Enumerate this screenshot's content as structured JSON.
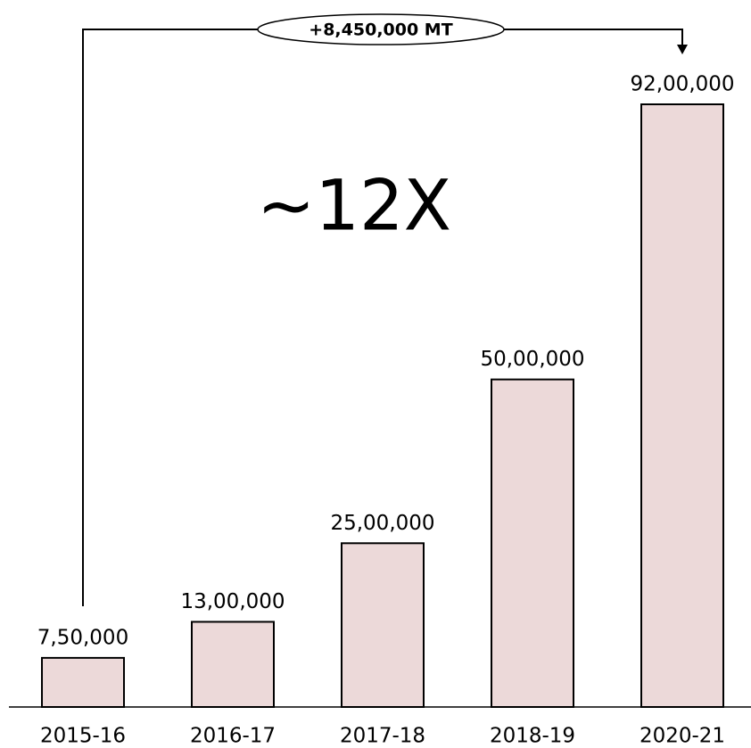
{
  "chart_data": {
    "type": "bar",
    "categories": [
      "2015-16",
      "2016-17",
      "2017-18",
      "2018-19",
      "2020-21"
    ],
    "values": [
      750000,
      1300000,
      2500000,
      5000000,
      9200000
    ],
    "value_labels": [
      "7,50,000",
      "13,00,000",
      "25,00,000",
      "50,00,000",
      "92,00,000"
    ],
    "color": "#ecd9d9",
    "ylim": [
      0,
      9200000
    ],
    "annotations": [
      "+8,450,000 MT",
      "~12X"
    ]
  }
}
